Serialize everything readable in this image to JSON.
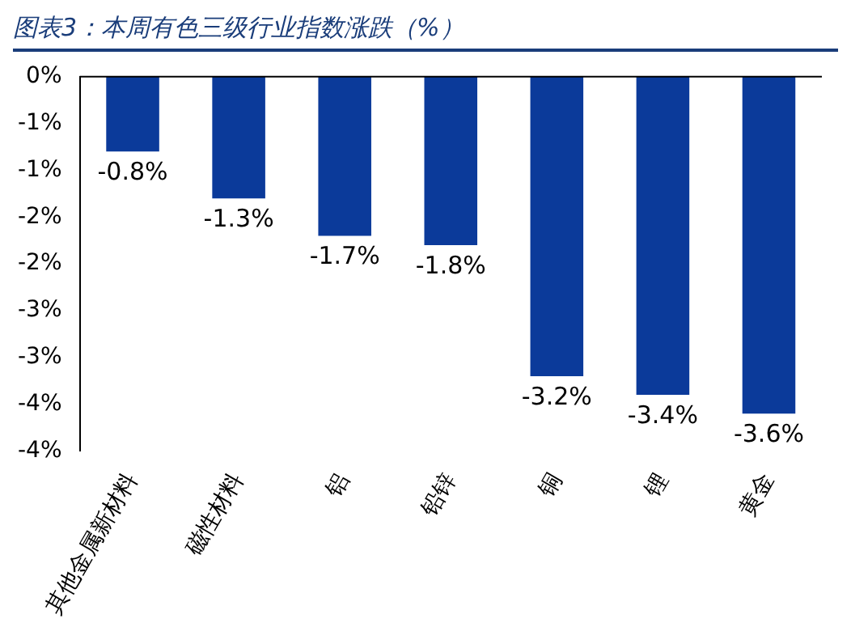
{
  "chart_data": {
    "type": "bar",
    "title": "图表3：本周有色三级行业指数涨跌（%）",
    "categories": [
      "其他金属新材料",
      "磁性材料",
      "铝",
      "铅锌",
      "铜",
      "锂",
      "黄金"
    ],
    "values": [
      -0.8,
      -1.3,
      -1.7,
      -1.8,
      -3.2,
      -3.4,
      -3.6
    ],
    "value_labels": [
      "-0.8%",
      "-1.3%",
      "-1.7%",
      "-1.8%",
      "-3.2%",
      "-3.4%",
      "-3.6%"
    ],
    "color": "#0b3a9a",
    "ylim": [
      -4,
      0
    ],
    "yticks": [
      {
        "value": 0,
        "label": "0%"
      },
      {
        "value": -0.5,
        "label": "-1%"
      },
      {
        "value": -1,
        "label": "-1%"
      },
      {
        "value": -1.5,
        "label": "-2%"
      },
      {
        "value": -2,
        "label": "-2%"
      },
      {
        "value": -2.5,
        "label": "-3%"
      },
      {
        "value": -3,
        "label": "-3%"
      },
      {
        "value": -3.5,
        "label": "-4%"
      },
      {
        "value": -4,
        "label": "-4%"
      }
    ]
  }
}
